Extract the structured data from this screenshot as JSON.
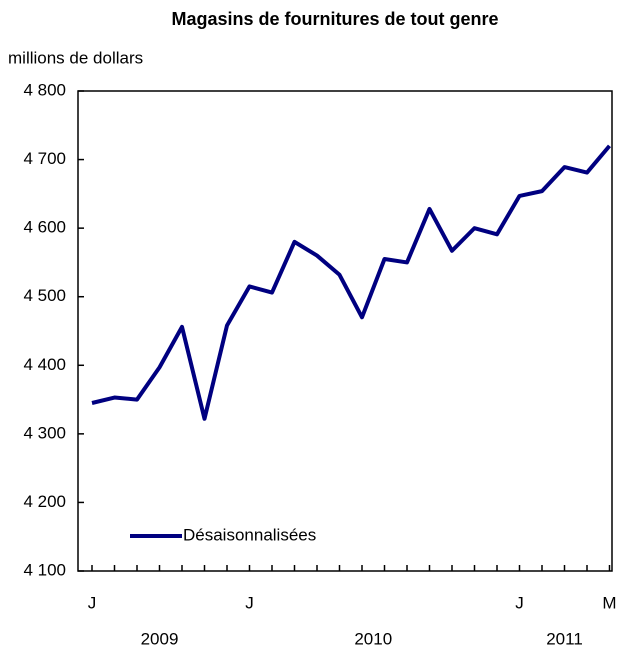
{
  "chart_data": {
    "type": "line",
    "title": "Magasins de fournitures de tout genre",
    "y_label": "millions de dollars",
    "categories": [
      "J",
      null,
      null,
      null,
      null,
      null,
      null,
      "J",
      null,
      null,
      null,
      null,
      null,
      null,
      null,
      null,
      null,
      null,
      null,
      "J",
      null,
      null,
      null,
      "M"
    ],
    "year_labels": [
      "2009",
      "2010",
      "2011"
    ],
    "series": [
      {
        "name": "Désaisonnalisées",
        "color": "#000080",
        "values": [
          4345,
          4353,
          4350,
          4397,
          4456,
          4322,
          4458,
          4515,
          4506,
          4580,
          4560,
          4532,
          4470,
          4555,
          4550,
          4628,
          4567,
          4600,
          4591,
          4647,
          4654,
          4689,
          4681,
          4720
        ]
      }
    ],
    "ylim": [
      4100,
      4800
    ],
    "yticks": [
      {
        "value": 4100,
        "label": "4 100"
      },
      {
        "value": 4200,
        "label": "4 200"
      },
      {
        "value": 4300,
        "label": "4 300"
      },
      {
        "value": 4400,
        "label": "4 400"
      },
      {
        "value": 4500,
        "label": "4 500"
      },
      {
        "value": 4600,
        "label": "4 600"
      },
      {
        "value": 4700,
        "label": "4 700"
      },
      {
        "value": 4800,
        "label": "4 800"
      }
    ],
    "legend": "lower left"
  }
}
